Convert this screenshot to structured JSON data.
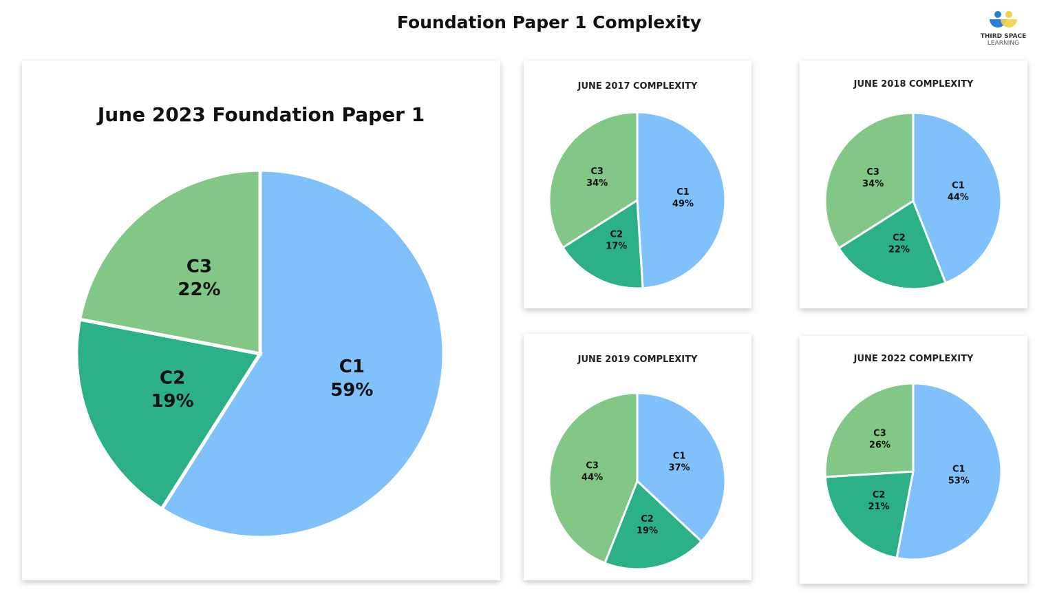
{
  "title": "Foundation Paper 1 Complexity",
  "logo": {
    "line1": "THIRD SPACE",
    "line2": "LEARNING"
  },
  "colors": {
    "C1": "#80c1fc",
    "C2": "#2bb088",
    "C3": "#82c785"
  },
  "chart_data": [
    {
      "type": "pie",
      "title": "June 2023 Foundation Paper 1",
      "categories": [
        "C1",
        "C2",
        "C3"
      ],
      "values": [
        59,
        19,
        22
      ]
    },
    {
      "type": "pie",
      "title": "JUNE 2017 COMPLEXITY",
      "categories": [
        "C1",
        "C2",
        "C3"
      ],
      "values": [
        49,
        17,
        34
      ]
    },
    {
      "type": "pie",
      "title": "JUNE 2018 COMPLEXITY",
      "categories": [
        "C1",
        "C2",
        "C3"
      ],
      "values": [
        44,
        22,
        34
      ]
    },
    {
      "type": "pie",
      "title": "JUNE 2019 COMPLEXITY",
      "categories": [
        "C1",
        "C2",
        "C3"
      ],
      "values": [
        37,
        19,
        44
      ]
    },
    {
      "type": "pie",
      "title": "JUNE 2022 COMPLEXITY",
      "categories": [
        "C1",
        "C2",
        "C3"
      ],
      "values": [
        53,
        21,
        26
      ]
    }
  ]
}
